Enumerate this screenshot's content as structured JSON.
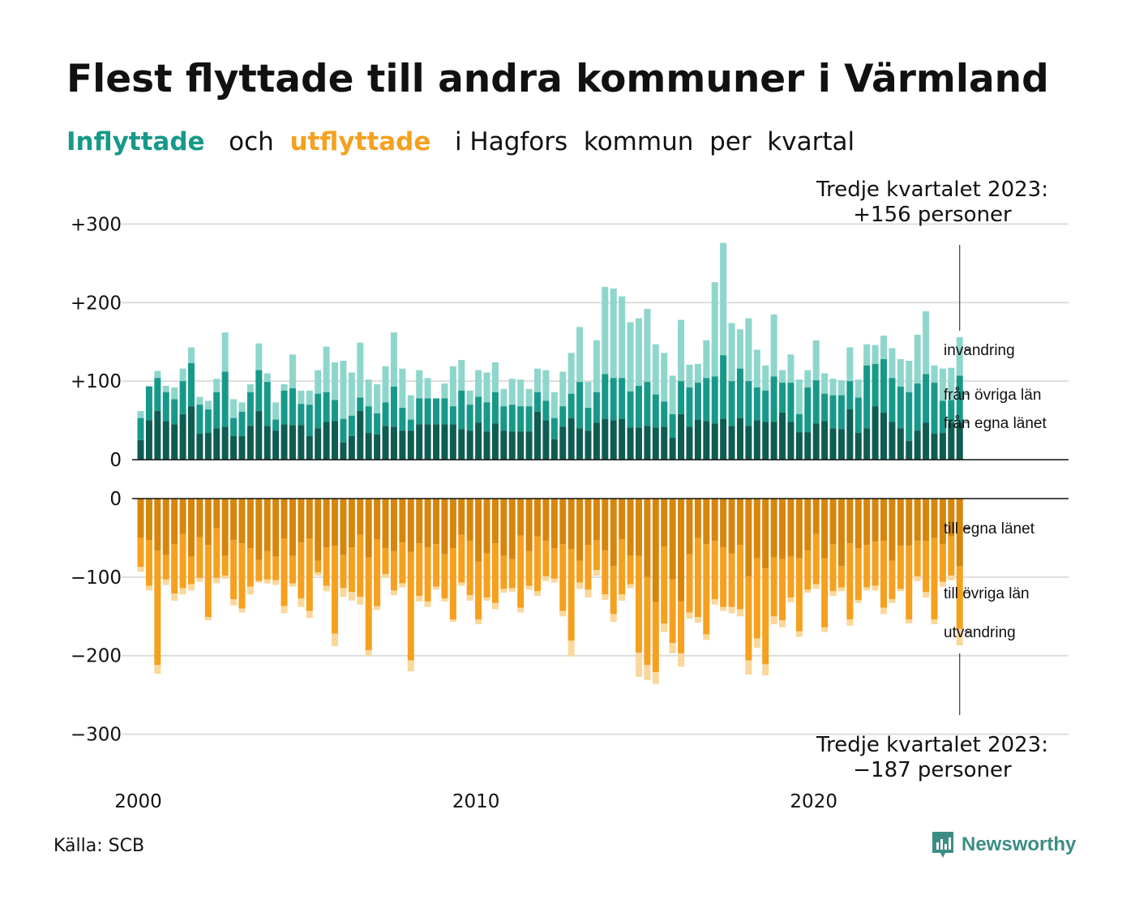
{
  "title": "Flest flyttade till andra kommuner i Värmland",
  "subtitle": {
    "part1": "Inflyttade",
    "part2": "och",
    "part3": "utflyttade",
    "part4": "i Hagfors  kommun  per  kvartal"
  },
  "source": "Källa: SCB",
  "brand": "Newsworthy",
  "colors": {
    "in_own_county": "#0f5c52",
    "in_other_counties": "#17998a",
    "in_immigration": "#8ed6cc",
    "out_own_county": "#d6860c",
    "out_other_counties": "#f5a01e",
    "out_emigration": "#fad79a",
    "grid": "#dddddd"
  },
  "chart_data": {
    "type": "bar",
    "x_unit": "quarter",
    "x_start": "2000 Q1",
    "x_end": "2023 Q3",
    "x_ticks": [
      "2000",
      "2010",
      "2020"
    ],
    "in_y_ticks": [
      "+300",
      "+200",
      "+100",
      "0"
    ],
    "out_y_ticks": [
      "0",
      "−100",
      "−200",
      "−300"
    ],
    "in_ylim": [
      0,
      300
    ],
    "out_ylim": [
      -300,
      0
    ],
    "grid": true,
    "in_series_labels": [
      "invandring",
      "från övriga län",
      "från egna länet"
    ],
    "out_series_labels": [
      "till egna länet",
      "till övriga län",
      "utvandring"
    ],
    "in_totals": [
      62,
      94,
      113,
      94,
      92,
      116,
      143,
      80,
      75,
      103,
      162,
      77,
      73,
      96,
      148,
      110,
      73,
      96,
      134,
      88,
      88,
      114,
      144,
      124,
      126,
      111,
      149,
      102,
      96,
      119,
      162,
      116,
      82,
      114,
      104,
      74,
      97,
      119,
      127,
      88,
      114,
      111,
      124,
      90,
      103,
      102,
      90,
      116,
      114,
      86,
      112,
      136,
      169,
      99,
      152,
      220,
      218,
      208,
      175,
      180,
      192,
      147,
      136,
      107,
      178,
      121,
      122,
      152,
      226,
      276,
      174,
      166,
      180,
      140,
      120,
      185,
      114,
      134,
      102,
      114,
      152,
      110,
      103,
      101,
      143,
      102,
      147,
      146,
      158,
      142,
      128,
      126,
      159,
      189,
      120,
      116,
      117,
      156
    ],
    "in_from_other_counties": [
      53,
      93,
      104,
      86,
      77,
      100,
      123,
      70,
      64,
      86,
      112,
      53,
      61,
      86,
      114,
      99,
      51,
      88,
      91,
      71,
      70,
      84,
      86,
      76,
      52,
      56,
      79,
      68,
      59,
      73,
      93,
      66,
      51,
      78,
      78,
      78,
      78,
      68,
      88,
      70,
      80,
      73,
      86,
      68,
      70,
      68,
      68,
      86,
      75,
      53,
      68,
      84,
      99,
      66,
      86,
      109,
      104,
      104,
      87,
      94,
      99,
      83,
      74,
      58,
      100,
      92,
      98,
      104,
      106,
      133,
      100,
      116,
      100,
      92,
      88,
      106,
      98,
      98,
      58,
      92,
      101,
      84,
      82,
      82,
      100,
      79,
      120,
      122,
      128,
      104,
      93,
      86,
      97,
      109,
      98,
      75,
      76,
      107
    ],
    "in_from_own_county": [
      25,
      50,
      62,
      49,
      45,
      58,
      68,
      33,
      34,
      40,
      42,
      30,
      30,
      43,
      62,
      43,
      37,
      45,
      44,
      44,
      30,
      40,
      48,
      49,
      22,
      30,
      62,
      34,
      32,
      43,
      42,
      37,
      37,
      45,
      45,
      45,
      45,
      45,
      39,
      37,
      47,
      36,
      46,
      37,
      36,
      36,
      36,
      61,
      50,
      26,
      42,
      53,
      40,
      37,
      47,
      52,
      50,
      52,
      41,
      41,
      43,
      41,
      42,
      28,
      58,
      42,
      51,
      49,
      46,
      52,
      43,
      53,
      43,
      50,
      48,
      48,
      60,
      48,
      35,
      35,
      46,
      49,
      40,
      39,
      64,
      34,
      40,
      68,
      60,
      48,
      40,
      24,
      37,
      47,
      33,
      34,
      47,
      47
    ],
    "out_totals": [
      93,
      117,
      223,
      110,
      130,
      122,
      117,
      106,
      155,
      108,
      102,
      136,
      145,
      122,
      107,
      108,
      110,
      146,
      112,
      138,
      152,
      98,
      118,
      188,
      125,
      130,
      135,
      200,
      142,
      101,
      123,
      113,
      220,
      131,
      138,
      116,
      131,
      157,
      111,
      130,
      160,
      130,
      141,
      120,
      119,
      145,
      116,
      124,
      105,
      107,
      150,
      201,
      115,
      126,
      98,
      129,
      157,
      130,
      114,
      227,
      231,
      236,
      170,
      197,
      214,
      153,
      158,
      180,
      135,
      143,
      146,
      150,
      224,
      190,
      225,
      160,
      164,
      132,
      176,
      120,
      115,
      170,
      124,
      118,
      162,
      133,
      117,
      117,
      147,
      133,
      118,
      159,
      105,
      126,
      160,
      112,
      104,
      187
    ],
    "out_to_other_and_own": [
      87,
      111,
      212,
      103,
      121,
      114,
      109,
      101,
      151,
      101,
      98,
      128,
      140,
      112,
      105,
      103,
      104,
      137,
      108,
      127,
      143,
      94,
      111,
      172,
      114,
      119,
      125,
      193,
      137,
      96,
      117,
      108,
      206,
      124,
      131,
      112,
      127,
      154,
      107,
      123,
      154,
      126,
      133,
      115,
      114,
      139,
      111,
      118,
      99,
      102,
      143,
      181,
      107,
      116,
      91,
      122,
      147,
      122,
      109,
      196,
      212,
      221,
      159,
      184,
      197,
      145,
      151,
      173,
      128,
      138,
      138,
      141,
      206,
      178,
      211,
      150,
      155,
      126,
      169,
      116,
      109,
      164,
      118,
      113,
      154,
      129,
      113,
      111,
      139,
      128,
      115,
      154,
      99,
      119,
      154,
      106,
      98,
      166
    ],
    "out_to_own_county": [
      50,
      53,
      66,
      72,
      58,
      45,
      74,
      49,
      59,
      38,
      73,
      53,
      57,
      63,
      78,
      67,
      74,
      51,
      73,
      56,
      51,
      79,
      62,
      60,
      72,
      62,
      46,
      75,
      52,
      63,
      67,
      56,
      68,
      57,
      62,
      58,
      71,
      63,
      46,
      54,
      80,
      70,
      57,
      73,
      77,
      47,
      67,
      48,
      54,
      63,
      58,
      64,
      79,
      59,
      53,
      66,
      86,
      52,
      73,
      73,
      100,
      132,
      61,
      103,
      131,
      71,
      50,
      58,
      54,
      62,
      70,
      59,
      99,
      76,
      89,
      75,
      77,
      74,
      76,
      66,
      45,
      76,
      58,
      86,
      57,
      63,
      59,
      55,
      54,
      79,
      60,
      60,
      54,
      54,
      50,
      58,
      48,
      86
    ]
  }
}
